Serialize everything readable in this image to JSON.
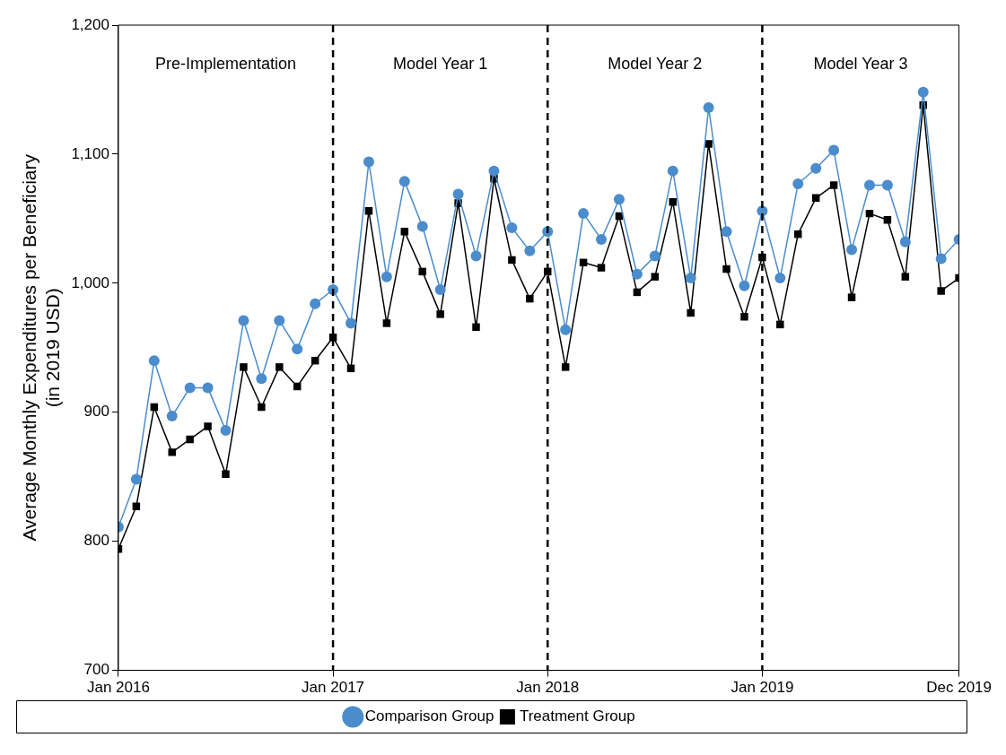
{
  "chart_data": {
    "type": "line",
    "ylabel": "Average Monthly Expenditures per Beneficiary\n(in 2019 USD)",
    "x": [
      "2016-01",
      "2016-02",
      "2016-03",
      "2016-04",
      "2016-05",
      "2016-06",
      "2016-07",
      "2016-08",
      "2016-09",
      "2016-10",
      "2016-11",
      "2016-12",
      "2017-01",
      "2017-02",
      "2017-03",
      "2017-04",
      "2017-05",
      "2017-06",
      "2017-07",
      "2017-08",
      "2017-09",
      "2017-10",
      "2017-11",
      "2017-12",
      "2018-01",
      "2018-02",
      "2018-03",
      "2018-04",
      "2018-05",
      "2018-06",
      "2018-07",
      "2018-08",
      "2018-09",
      "2018-10",
      "2018-11",
      "2018-12",
      "2019-01",
      "2019-02",
      "2019-03",
      "2019-04",
      "2019-05",
      "2019-06",
      "2019-07",
      "2019-08",
      "2019-09",
      "2019-10",
      "2019-11",
      "2019-12"
    ],
    "series": [
      {
        "name": "Comparison Group",
        "color": "#4a8ccc",
        "marker": "circle",
        "values": [
          811,
          848,
          940,
          897,
          919,
          919,
          886,
          971,
          926,
          971,
          949,
          984,
          995,
          969,
          1094,
          1005,
          1079,
          1044,
          995,
          1069,
          1021,
          1087,
          1043,
          1025,
          1040,
          964,
          1054,
          1034,
          1065,
          1007,
          1021,
          1087,
          1004,
          1136,
          1040,
          998,
          1056,
          1004,
          1077,
          1089,
          1103,
          1026,
          1076,
          1076,
          1032,
          1148,
          1019,
          1034
        ]
      },
      {
        "name": "Treatment Group",
        "color": "#000000",
        "marker": "square",
        "values": [
          794,
          827,
          904,
          869,
          879,
          889,
          852,
          935,
          904,
          935,
          920,
          940,
          958,
          934,
          1056,
          969,
          1040,
          1009,
          976,
          1062,
          966,
          1081,
          1018,
          988,
          1009,
          935,
          1016,
          1012,
          1052,
          993,
          1005,
          1063,
          977,
          1108,
          1011,
          974,
          1020,
          968,
          1038,
          1066,
          1076,
          989,
          1054,
          1049,
          1005,
          1138,
          994,
          1004
        ]
      }
    ],
    "xlim": [
      "2016-01",
      "2019-12"
    ],
    "xticks": [
      {
        "value": "2016-01",
        "label": "Jan 2016"
      },
      {
        "value": "2017-01",
        "label": "Jan 2017"
      },
      {
        "value": "2018-01",
        "label": "Jan 2018"
      },
      {
        "value": "2019-01",
        "label": "Jan 2019"
      },
      {
        "value": "2019-12",
        "label": "Dec 2019"
      }
    ],
    "ylim": [
      700,
      1200
    ],
    "yticks": [
      {
        "value": 700,
        "label": "700"
      },
      {
        "value": 800,
        "label": "800"
      },
      {
        "value": 900,
        "label": "900"
      },
      {
        "value": 1000,
        "label": "1,000"
      },
      {
        "value": 1100,
        "label": "1,100"
      },
      {
        "value": 1200,
        "label": "1,200"
      }
    ],
    "ref_lines": [
      {
        "axis": "x",
        "value": "2017-01",
        "line_style": "dashed",
        "color": "#000000"
      },
      {
        "axis": "x",
        "value": "2018-01",
        "line_style": "dashed",
        "color": "#000000"
      },
      {
        "axis": "x",
        "value": "2019-01",
        "line_style": "dashed",
        "color": "#000000"
      }
    ],
    "annotations": [
      "Pre-Implementation",
      "Model Year 1",
      "Model Year 2",
      "Model Year 3"
    ],
    "grid": false,
    "legend": "bottom",
    "line_style": "solid"
  }
}
